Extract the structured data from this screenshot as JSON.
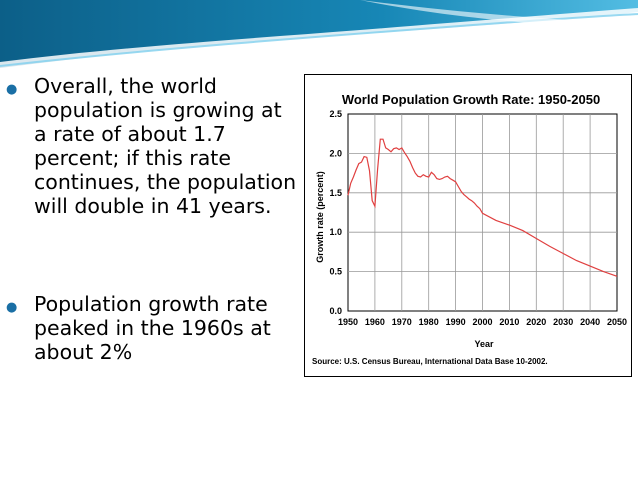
{
  "slide": {
    "bullets": [
      {
        "text": "Overall, the world population is growing at a rate of about 1.7 percent; if this rate continues, the population will double in 41 years."
      },
      {
        "text": "Population growth rate peaked in the 1960s at about 2%"
      }
    ]
  },
  "colors": {
    "banner_dark": "#0e6e9a",
    "banner_light": "#5cc3e6",
    "bullet": "#1a6fa5",
    "line": "#e04040"
  },
  "source_text": "Source: U.S. Census Bureau, International Data Base 10-2002.",
  "chart_data": {
    "type": "line",
    "title": "World Population Growth Rate: 1950-2050",
    "xlabel": "Year",
    "ylabel": "Growth rate (percent)",
    "xlim": [
      1950,
      2050
    ],
    "ylim": [
      0,
      2.5
    ],
    "xticks": [
      1950,
      1960,
      1970,
      1980,
      1990,
      2000,
      2010,
      2020,
      2030,
      2040,
      2050
    ],
    "yticks": [
      "0.0",
      "0.5",
      "1.0",
      "1.5",
      "2.0",
      "2.5"
    ],
    "grid": true,
    "series": [
      {
        "x": [
          1950,
          1951,
          1952,
          1953,
          1954,
          1955,
          1956,
          1957,
          1958,
          1959,
          1960,
          1961,
          1962,
          1963,
          1964,
          1965,
          1966,
          1967,
          1968,
          1969,
          1970,
          1971,
          1972,
          1973,
          1974,
          1975,
          1976,
          1977,
          1978,
          1979,
          1980,
          1981,
          1982,
          1983,
          1984,
          1985,
          1986,
          1987,
          1988,
          1989,
          1990,
          1991,
          1992,
          1993,
          1994,
          1995,
          1996,
          1997,
          1998,
          1999,
          2000,
          2005,
          2010,
          2015,
          2020,
          2025,
          2030,
          2035,
          2040,
          2045,
          2050
        ],
        "y": [
          1.47,
          1.62,
          1.7,
          1.79,
          1.87,
          1.89,
          1.96,
          1.95,
          1.78,
          1.4,
          1.33,
          1.8,
          2.18,
          2.18,
          2.07,
          2.05,
          2.02,
          2.06,
          2.07,
          2.05,
          2.07,
          2.01,
          1.96,
          1.9,
          1.82,
          1.75,
          1.71,
          1.7,
          1.73,
          1.71,
          1.7,
          1.76,
          1.73,
          1.68,
          1.67,
          1.68,
          1.7,
          1.71,
          1.68,
          1.66,
          1.64,
          1.58,
          1.52,
          1.48,
          1.45,
          1.42,
          1.4,
          1.37,
          1.33,
          1.3,
          1.24,
          1.15,
          1.09,
          1.02,
          0.92,
          0.82,
          0.73,
          0.64,
          0.57,
          0.5,
          0.44
        ]
      }
    ]
  }
}
